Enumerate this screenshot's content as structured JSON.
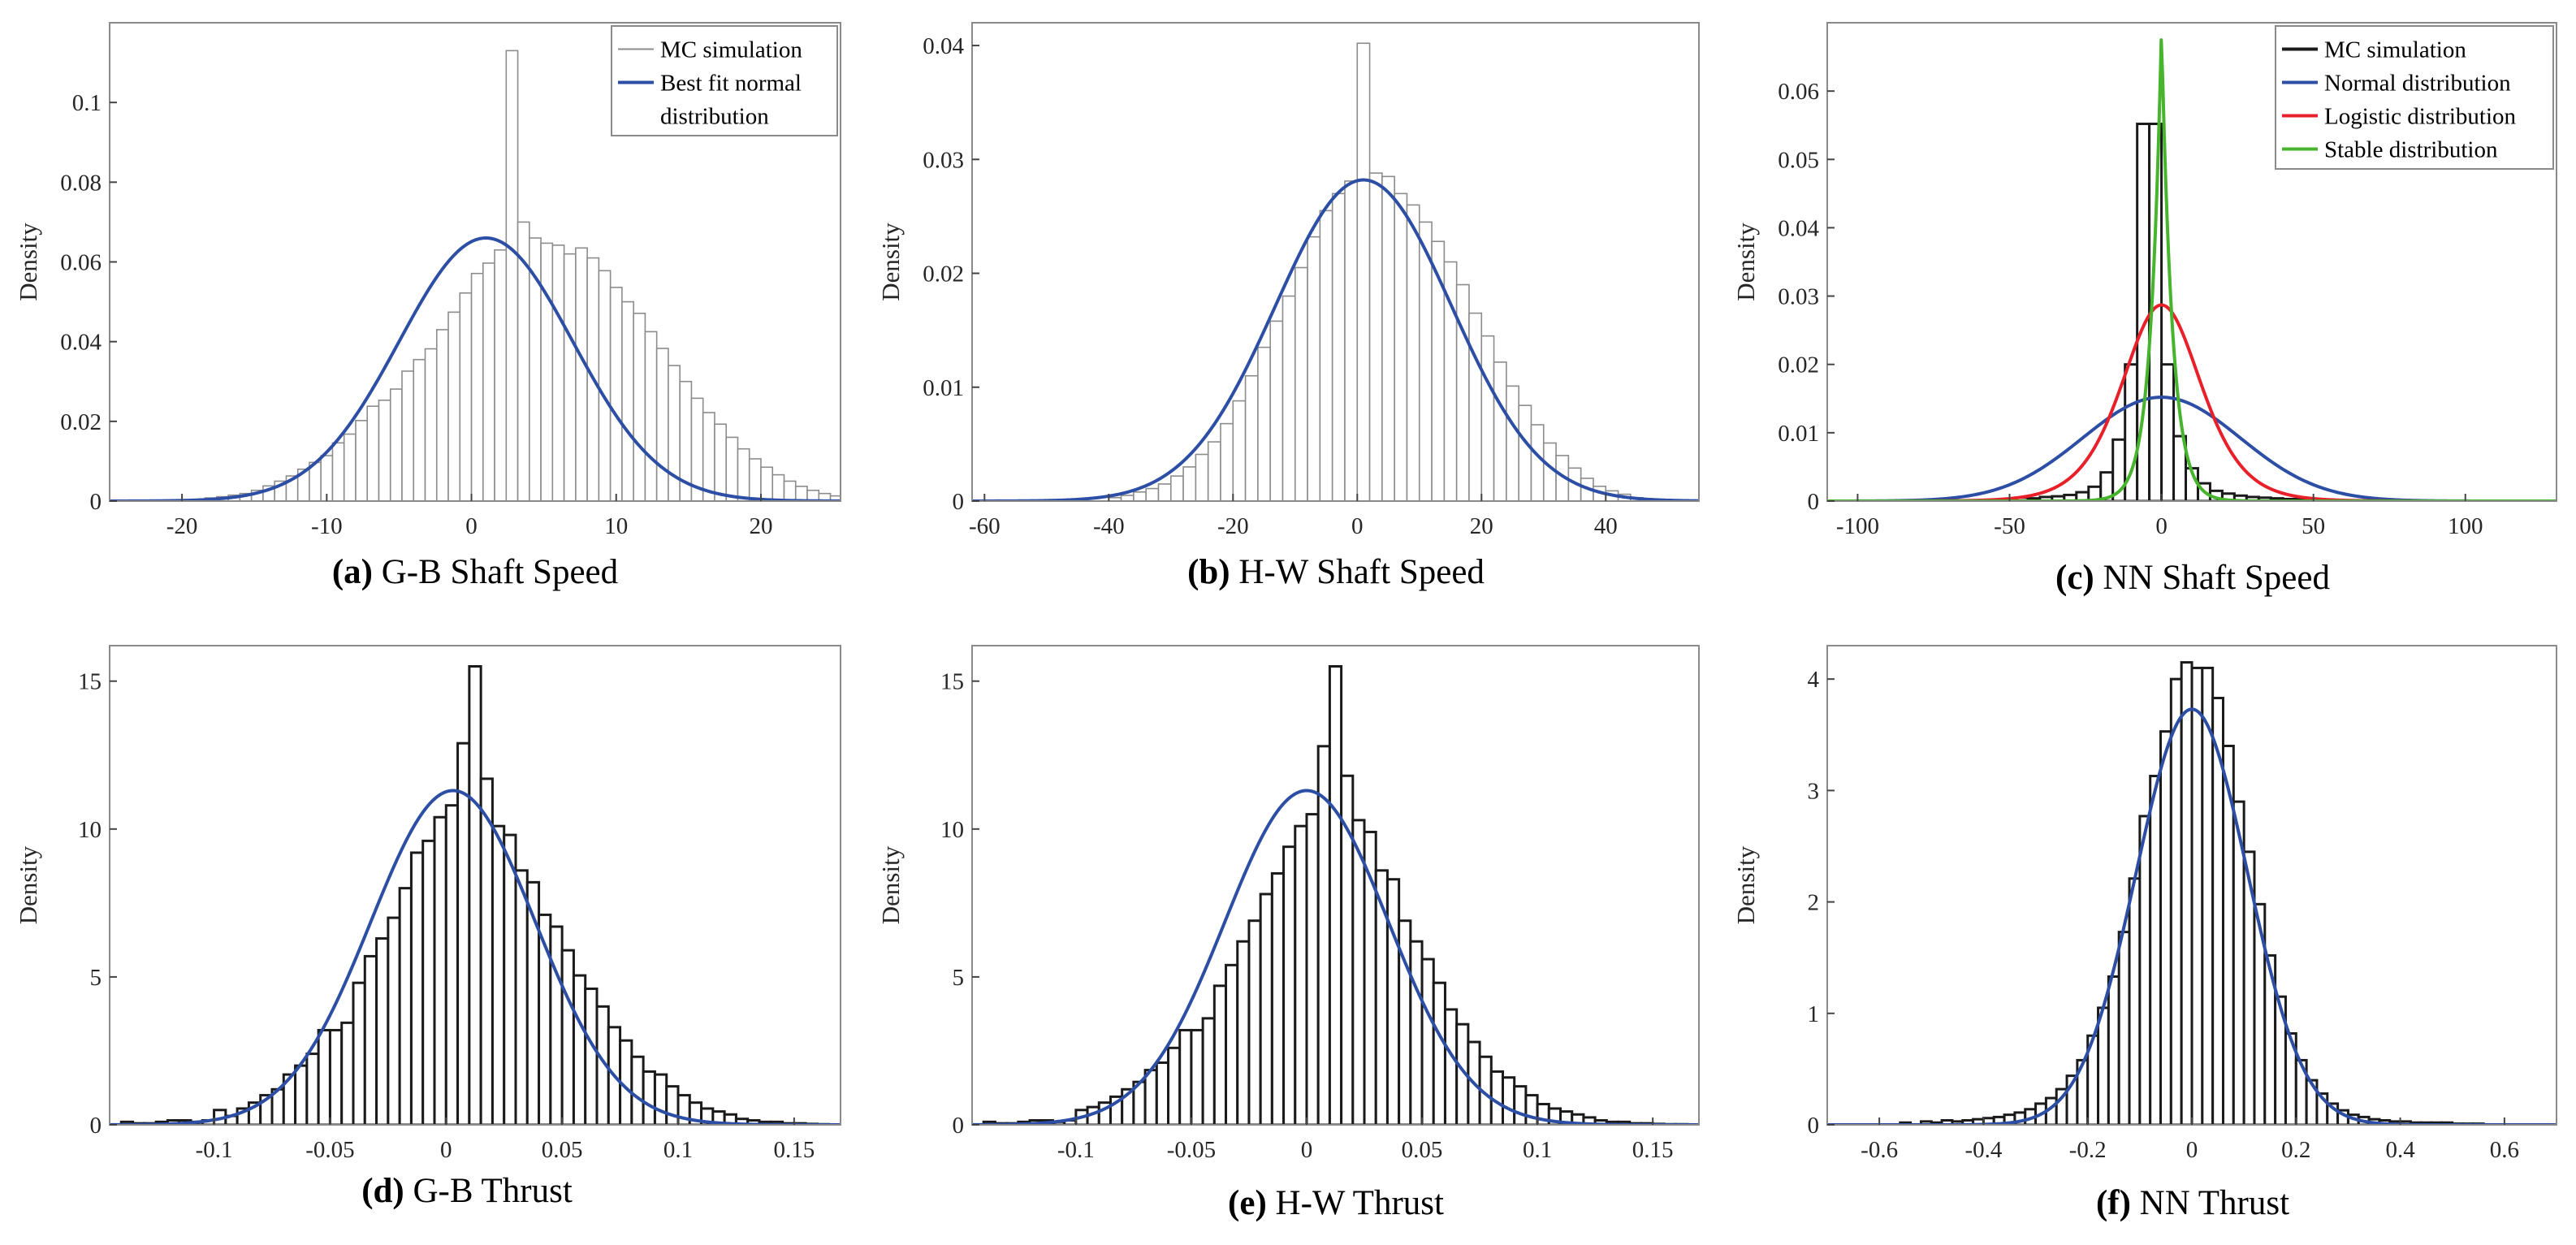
{
  "colors": {
    "normal": "#2d4ea5",
    "logistic": "#e8202a",
    "stable": "#46b42d",
    "mc_dark": "#1a1a1a",
    "mc_light": "#8c8c8c"
  },
  "chart_data": [
    {
      "type": "histogram",
      "id": "a",
      "caption_letter": "(a)",
      "caption_text": "G-B Shaft Speed",
      "ylabel": "Density",
      "xlim": [
        -25,
        25.5
      ],
      "ylim": [
        0,
        0.12
      ],
      "xticks": [
        -20,
        -10,
        0,
        10,
        20
      ],
      "xtick_labels": [
        "-20",
        "-10",
        "0",
        "10",
        "20"
      ],
      "yticks": [
        0,
        0.02,
        0.04,
        0.06,
        0.08,
        0.1
      ],
      "ytick_labels": [
        "0",
        "0.02",
        "0.04",
        "0.06",
        "0.08",
        "0.1"
      ],
      "hist_style": "light",
      "bin_start": -20,
      "bin_width": 0.8,
      "values": [
        0.0003,
        0.0004,
        0.0008,
        0.0011,
        0.0015,
        0.0019,
        0.0027,
        0.0038,
        0.005,
        0.0063,
        0.008,
        0.0097,
        0.0114,
        0.0146,
        0.0168,
        0.0202,
        0.0238,
        0.0253,
        0.0281,
        0.0326,
        0.0355,
        0.0382,
        0.043,
        0.0474,
        0.0522,
        0.0571,
        0.0597,
        0.063,
        0.113,
        0.07,
        0.066,
        0.0647,
        0.0642,
        0.062,
        0.0635,
        0.061,
        0.0578,
        0.0536,
        0.05,
        0.0471,
        0.0425,
        0.0383,
        0.034,
        0.03,
        0.0258,
        0.0222,
        0.0193,
        0.016,
        0.0131,
        0.0106,
        0.0085,
        0.0066,
        0.005,
        0.0037,
        0.0027,
        0.0019,
        0.0013
      ],
      "fits": [
        {
          "name": "Best fit normal distribution",
          "kind": "normal",
          "mu": 1.0,
          "sigma": 6.0,
          "peak": 0.066,
          "color_key": "normal"
        }
      ],
      "legend": {
        "position": "top-right",
        "entries": [
          {
            "label": "MC simulation",
            "color_key": "mc_light",
            "width": 2
          },
          {
            "label": "Best fit normal",
            "label_line2": "distribution",
            "color_key": "normal",
            "width": 4
          }
        ]
      }
    },
    {
      "type": "histogram",
      "id": "b",
      "caption_letter": "(b)",
      "caption_text": "H-W Shaft Speed",
      "ylabel": "Density",
      "xlim": [
        -62,
        55
      ],
      "ylim": [
        0,
        0.042
      ],
      "xticks": [
        -60,
        -40,
        -20,
        0,
        20,
        40
      ],
      "xtick_labels": [
        "-60",
        "-40",
        "-20",
        "0",
        "20",
        "40"
      ],
      "yticks": [
        0,
        0.01,
        0.02,
        0.03,
        0.04
      ],
      "ytick_labels": [
        "0",
        "0.01",
        "0.02",
        "0.03",
        "0.04"
      ],
      "hist_style": "light",
      "bin_start": -40,
      "bin_width": 2,
      "values": [
        0.0003,
        0.0005,
        0.0008,
        0.0011,
        0.0015,
        0.0022,
        0.003,
        0.0041,
        0.0052,
        0.0068,
        0.0088,
        0.011,
        0.0135,
        0.0158,
        0.018,
        0.0205,
        0.0232,
        0.0255,
        0.027,
        0.0281,
        0.0402,
        0.0288,
        0.0285,
        0.027,
        0.026,
        0.0245,
        0.0228,
        0.021,
        0.019,
        0.0165,
        0.0145,
        0.0122,
        0.0101,
        0.0084,
        0.0067,
        0.0051,
        0.004,
        0.0029,
        0.002,
        0.0013,
        0.0009,
        0.0006,
        0.0003
      ],
      "fits": [
        {
          "name": "Normal",
          "kind": "normal",
          "mu": 1.0,
          "sigma": 14.2,
          "peak": 0.0282,
          "color_key": "normal"
        }
      ]
    },
    {
      "type": "histogram",
      "id": "c",
      "caption_letter": "(c)",
      "caption_text": "NN Shaft Speed",
      "ylabel": "Density",
      "xlim": [
        -110,
        130
      ],
      "ylim": [
        0,
        0.07
      ],
      "xticks": [
        -100,
        -50,
        0,
        50,
        100
      ],
      "xtick_labels": [
        "-100",
        "-50",
        "0",
        "50",
        "100"
      ],
      "yticks": [
        0,
        0.01,
        0.02,
        0.03,
        0.04,
        0.05,
        0.06
      ],
      "ytick_labels": [
        "0",
        "0.01",
        "0.02",
        "0.03",
        "0.04",
        "0.05",
        "0.06"
      ],
      "hist_style": "dark",
      "bin_start": -52,
      "bin_width": 4,
      "values": [
        0.0003,
        0.0005,
        0.0004,
        0.0006,
        0.0007,
        0.0009,
        0.0013,
        0.0021,
        0.0042,
        0.009,
        0.02,
        0.0552,
        0.0552,
        0.02,
        0.0095,
        0.0048,
        0.0026,
        0.0015,
        0.0011,
        0.0008,
        0.0006,
        0.0005,
        0.0004,
        0.0003,
        0.0003,
        0.0002
      ],
      "fits": [
        {
          "name": "Normal distribution",
          "kind": "normal",
          "mu": 0,
          "sigma": 26.0,
          "peak": 0.0152,
          "color_key": "normal"
        },
        {
          "name": "Logistic distribution",
          "kind": "logistic",
          "mu": 0,
          "s": 8.7,
          "peak": 0.0287,
          "color_key": "logistic"
        },
        {
          "name": "Stable distribution",
          "kind": "laplace",
          "mu": 0,
          "b": 3.6,
          "peak": 0.069,
          "color_key": "stable"
        }
      ],
      "legend": {
        "position": "top-right",
        "entries": [
          {
            "label": "MC simulation",
            "color_key": "mc_dark",
            "width": 4
          },
          {
            "label": "Normal distribution",
            "color_key": "normal",
            "width": 4
          },
          {
            "label": "Logistic distribution",
            "color_key": "logistic",
            "width": 4
          },
          {
            "label": "Stable distribution",
            "color_key": "stable",
            "width": 4
          }
        ]
      }
    },
    {
      "type": "histogram",
      "id": "d",
      "caption_letter": "(d)",
      "caption_text": "G-B Thrust",
      "ylabel": "Density",
      "xlim": [
        -0.145,
        0.17
      ],
      "ylim": [
        0,
        16.2
      ],
      "xticks": [
        -0.1,
        -0.05,
        0,
        0.05,
        0.1,
        0.15
      ],
      "xtick_labels": [
        "-0.1",
        "-0.05",
        "0",
        "0.05",
        "0.1",
        "0.15"
      ],
      "yticks": [
        0,
        5,
        10,
        15
      ],
      "ytick_labels": [
        "0",
        "5",
        "10",
        "15"
      ],
      "hist_style": "dark",
      "bin_start": -0.14,
      "bin_width": 0.005,
      "values": [
        0.1,
        0.05,
        0.05,
        0.1,
        0.15,
        0.15,
        0.1,
        0.15,
        0.5,
        0.3,
        0.55,
        0.75,
        1.0,
        1.2,
        1.7,
        2.0,
        2.4,
        3.2,
        3.2,
        3.45,
        4.8,
        5.7,
        6.3,
        7.0,
        8.0,
        9.2,
        9.6,
        10.4,
        10.8,
        12.9,
        15.5,
        11.7,
        10.1,
        9.8,
        8.6,
        8.2,
        7.1,
        6.7,
        5.9,
        5.05,
        4.6,
        4.0,
        3.3,
        2.85,
        2.3,
        1.8,
        1.7,
        1.3,
        1.0,
        0.75,
        0.55,
        0.45,
        0.35,
        0.2,
        0.15,
        0.1,
        0.1,
        0.05,
        0.05,
        0.03,
        0.02
      ],
      "fits": [
        {
          "name": "Normal",
          "kind": "normal",
          "mu": 0.003,
          "sigma": 0.0355,
          "peak": 11.3,
          "color_key": "normal"
        }
      ]
    },
    {
      "type": "histogram",
      "id": "e",
      "caption_letter": "(e)",
      "caption_text": "H-W Thrust",
      "ylabel": "Density",
      "xlim": [
        -0.145,
        0.17
      ],
      "ylim": [
        0,
        16.2
      ],
      "xticks": [
        -0.1,
        -0.05,
        0,
        0.05,
        0.1,
        0.15
      ],
      "xtick_labels": [
        "-0.1",
        "-0.05",
        "0",
        "0.05",
        "0.1",
        "0.15"
      ],
      "yticks": [
        0,
        5,
        10,
        15
      ],
      "ytick_labels": [
        "0",
        "5",
        "10",
        "15"
      ],
      "hist_style": "dark",
      "bin_start": -0.14,
      "bin_width": 0.005,
      "values": [
        0.1,
        0.05,
        0.05,
        0.1,
        0.15,
        0.15,
        0.1,
        0.15,
        0.5,
        0.6,
        0.75,
        0.95,
        1.2,
        1.45,
        1.85,
        2.1,
        2.6,
        3.2,
        3.2,
        3.6,
        4.7,
        5.4,
        6.2,
        6.9,
        7.8,
        8.5,
        9.4,
        10.1,
        10.5,
        12.8,
        15.5,
        11.8,
        10.3,
        9.9,
        8.6,
        8.3,
        6.9,
        6.2,
        5.6,
        4.8,
        3.9,
        3.4,
        2.8,
        2.3,
        1.8,
        1.6,
        1.3,
        1.0,
        0.7,
        0.55,
        0.45,
        0.35,
        0.25,
        0.15,
        0.1,
        0.1,
        0.05,
        0.05,
        0.03,
        0.02,
        0.02
      ],
      "fits": [
        {
          "name": "Normal",
          "kind": "normal",
          "mu": 0.0,
          "sigma": 0.0355,
          "peak": 11.3,
          "color_key": "normal"
        }
      ]
    },
    {
      "type": "histogram",
      "id": "f",
      "caption_letter": "(f)",
      "caption_text": "NN Thrust",
      "ylabel": "Density",
      "xlim": [
        -0.7,
        0.7
      ],
      "ylim": [
        0,
        4.3
      ],
      "xticks": [
        -0.6,
        -0.4,
        -0.2,
        0,
        0.2,
        0.4,
        0.6
      ],
      "xtick_labels": [
        "-0.6",
        "-0.4",
        "-0.2",
        "0",
        "0.2",
        "0.4",
        "0.6"
      ],
      "yticks": [
        0,
        1,
        2,
        3,
        4
      ],
      "ytick_labels": [
        "0",
        "1",
        "2",
        "3",
        "4"
      ],
      "hist_style": "dark",
      "bin_start": -0.56,
      "bin_width": 0.02,
      "values": [
        0.02,
        0.0,
        0.03,
        0.02,
        0.04,
        0.03,
        0.04,
        0.05,
        0.06,
        0.07,
        0.09,
        0.11,
        0.14,
        0.19,
        0.24,
        0.32,
        0.44,
        0.58,
        0.8,
        1.05,
        1.33,
        1.73,
        2.21,
        2.77,
        3.13,
        3.53,
        4.0,
        4.15,
        4.1,
        4.1,
        3.83,
        3.4,
        2.9,
        2.45,
        1.98,
        1.52,
        1.15,
        0.82,
        0.58,
        0.4,
        0.28,
        0.19,
        0.13,
        0.09,
        0.07,
        0.05,
        0.04,
        0.03,
        0.03,
        0.02,
        0.02,
        0.02,
        0.02,
        0.01,
        0.01,
        0.01
      ],
      "fits": [
        {
          "name": "Normal",
          "kind": "normal",
          "mu": 0.0,
          "sigma": 0.107,
          "peak": 3.73,
          "color_key": "normal"
        }
      ]
    }
  ]
}
